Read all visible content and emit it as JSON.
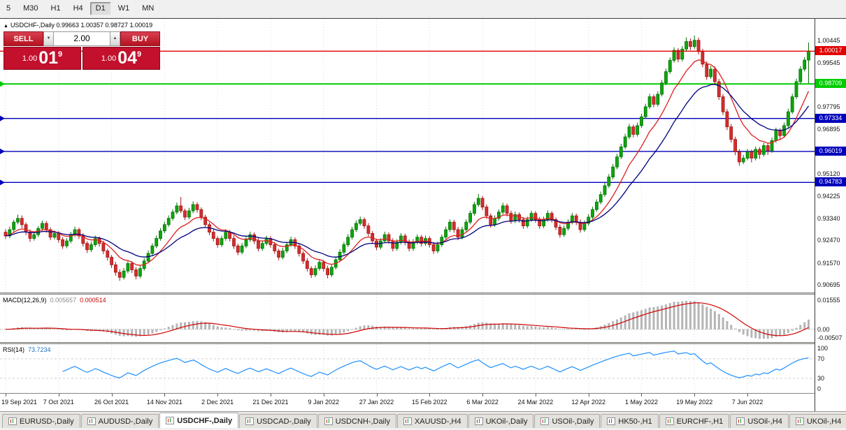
{
  "toolbar": {
    "timeframes": [
      "5",
      "M30",
      "H1",
      "H4",
      "D1",
      "W1",
      "MN"
    ],
    "active": "D1"
  },
  "chart_info": {
    "icon": "▲",
    "title": "USDCHF-,Daily",
    "ohlc_text": "0.99663 1.00357 0.98727 1.00019",
    "open": "0.99663",
    "high": "1.00357",
    "low": "0.98727",
    "close": "1.00019"
  },
  "trade_panel": {
    "sell_label": "SELL",
    "buy_label": "BUY",
    "volume": "2.00",
    "spin_down": "▼",
    "spin_up": "▲",
    "bid_small": "1.00",
    "bid_big": "01",
    "bid_sup": "9",
    "ask_small": "1.00",
    "ask_big": "04",
    "ask_sup": "9"
  },
  "price_scale": {
    "ticks": [
      {
        "t": "1.00445",
        "p": 1.00445
      },
      {
        "t": "0.99545",
        "p": 0.99545
      },
      {
        "t": "0.97795",
        "p": 0.97795
      },
      {
        "t": "0.96895",
        "p": 0.96895
      },
      {
        "t": "0.95120",
        "p": 0.9512
      },
      {
        "t": "0.94225",
        "p": 0.94225
      },
      {
        "t": "0.93340",
        "p": 0.9334
      },
      {
        "t": "0.92470",
        "p": 0.9247
      },
      {
        "t": "0.91570",
        "p": 0.9157
      },
      {
        "t": "0.90695",
        "p": 0.90695
      }
    ]
  },
  "indicators": {
    "macd": {
      "name": "MACD(12,26,9)",
      "value_main": "0.005657",
      "value_signal": "0.000514",
      "axis": [
        {
          "t": "0.01555",
          "v": 0.01555
        },
        {
          "t": "0.00",
          "v": 0
        },
        {
          "t": "-0.00507",
          "v": -0.00507
        }
      ],
      "histogram_color": "#b5b5b5",
      "signal_color": "#cf0000"
    },
    "rsi": {
      "name": "RSI(14)",
      "value": "73.7234",
      "axis": [
        {
          "t": "100",
          "v": 100
        },
        {
          "t": "70",
          "v": 70
        },
        {
          "t": "30",
          "v": 30
        },
        {
          "t": "0",
          "v": 0
        }
      ],
      "levels": [
        70,
        30
      ],
      "line_color": "#1e90ff"
    }
  },
  "tabs": {
    "items": [
      "EURUSD-,Daily",
      "AUDUSD-,Daily",
      "USDCHF-,Daily",
      "USDCAD-,Daily",
      "USDCNH-,Daily",
      "XAUUSD-,H4",
      "UKOil-,Daily",
      "USOil-,Daily",
      "HK50-,H1",
      "EURCHF-,H1",
      "USOil-,H4",
      "UKOil-,H4"
    ],
    "active_index": 2
  },
  "chart_data": {
    "type": "candlestick",
    "symbol": "USDCHF",
    "timeframe": "Daily",
    "ylim": [
      0.9045,
      1.0125
    ],
    "x_offset": 8,
    "bar_spacing": 5.83,
    "label_every": 13,
    "x_labels": [
      "19 Sep 2021",
      "7 Oct 2021",
      "26 Oct 2021",
      "14 Nov 2021",
      "2 Dec 2021",
      "21 Dec 2021",
      "9 Jan 2022",
      "27 Jan 2022",
      "15 Feb 2022",
      "6 Mar 2022",
      "24 Mar 2022",
      "12 Apr 2022",
      "1 May 2022",
      "19 May 2022",
      "7 Jun 2022"
    ],
    "up_color": "#0da60d",
    "down_color": "#d22f2f",
    "mas": [
      {
        "period": 10,
        "color": "#dd2020",
        "width": 1.3
      },
      {
        "period": 21,
        "color": "#000080",
        "width": 1.3
      }
    ],
    "macd_range": [
      -0.0068,
      0.0185
    ],
    "levels": [
      {
        "price": 1.00017,
        "label": "1.00017",
        "color": "#e00000",
        "width": 1.4,
        "marker": false,
        "over": true
      },
      {
        "price": 0.98709,
        "label": "0.98709",
        "color": "#00cc00",
        "width": 2,
        "marker": true,
        "over": false
      },
      {
        "price": 0.97334,
        "label": "0.97334",
        "color": "#0000bb",
        "width": 1.4,
        "marker": true,
        "over": false
      },
      {
        "price": 0.96019,
        "label": "0.96019",
        "color": "#0000bb",
        "width": 1.4,
        "marker": true,
        "over": false
      },
      {
        "price": 0.94783,
        "label": "0.94783",
        "color": "#0000bb",
        "width": 1.4,
        "marker": true,
        "over": false
      }
    ],
    "ohlc_current": [
      0.99663,
      1.00357,
      0.98727,
      1.00019
    ],
    "candles": [
      [
        0.928,
        0.9292,
        0.9253,
        0.9265
      ],
      [
        0.9265,
        0.9302,
        0.9256,
        0.929
      ],
      [
        0.929,
        0.9329,
        0.9281,
        0.932
      ],
      [
        0.932,
        0.935,
        0.9311,
        0.9335
      ],
      [
        0.9335,
        0.9347,
        0.9296,
        0.931
      ],
      [
        0.931,
        0.9319,
        0.9268,
        0.928
      ],
      [
        0.928,
        0.9291,
        0.9241,
        0.9255
      ],
      [
        0.9255,
        0.9282,
        0.9246,
        0.927
      ],
      [
        0.927,
        0.9304,
        0.9261,
        0.9295
      ],
      [
        0.9295,
        0.9327,
        0.9286,
        0.9315
      ],
      [
        0.9315,
        0.9324,
        0.9278,
        0.929
      ],
      [
        0.929,
        0.9299,
        0.9248,
        0.926
      ],
      [
        0.926,
        0.9287,
        0.9251,
        0.9275
      ],
      [
        0.9275,
        0.9284,
        0.9238,
        0.925
      ],
      [
        0.925,
        0.9261,
        0.9213,
        0.9225
      ],
      [
        0.9225,
        0.9256,
        0.9216,
        0.9245
      ],
      [
        0.9245,
        0.9281,
        0.9236,
        0.927
      ],
      [
        0.927,
        0.9302,
        0.9261,
        0.929
      ],
      [
        0.929,
        0.9298,
        0.9253,
        0.9265
      ],
      [
        0.9265,
        0.9276,
        0.9223,
        0.9235
      ],
      [
        0.9235,
        0.9244,
        0.9197,
        0.921
      ],
      [
        0.921,
        0.9242,
        0.9201,
        0.923
      ],
      [
        0.923,
        0.9266,
        0.9221,
        0.9255
      ],
      [
        0.9255,
        0.9263,
        0.9222,
        0.9235
      ],
      [
        0.9235,
        0.9246,
        0.9192,
        0.9205
      ],
      [
        0.9205,
        0.9214,
        0.9167,
        0.918
      ],
      [
        0.918,
        0.9189,
        0.9137,
        0.915
      ],
      [
        0.915,
        0.9161,
        0.9106,
        0.912
      ],
      [
        0.912,
        0.9131,
        0.9086,
        0.91
      ],
      [
        0.91,
        0.9137,
        0.9091,
        0.9125
      ],
      [
        0.9125,
        0.9166,
        0.9116,
        0.9155
      ],
      [
        0.9155,
        0.9164,
        0.9117,
        0.913
      ],
      [
        0.913,
        0.9141,
        0.9092,
        0.9105
      ],
      [
        0.9105,
        0.9147,
        0.9096,
        0.9135
      ],
      [
        0.9135,
        0.9176,
        0.9126,
        0.9165
      ],
      [
        0.9165,
        0.9207,
        0.9156,
        0.9195
      ],
      [
        0.9195,
        0.9236,
        0.9186,
        0.9225
      ],
      [
        0.9225,
        0.9267,
        0.9216,
        0.9255
      ],
      [
        0.9255,
        0.9296,
        0.9246,
        0.9285
      ],
      [
        0.9285,
        0.9322,
        0.9276,
        0.931
      ],
      [
        0.931,
        0.9347,
        0.9301,
        0.9335
      ],
      [
        0.9335,
        0.9371,
        0.9326,
        0.936
      ],
      [
        0.936,
        0.9398,
        0.9351,
        0.9385
      ],
      [
        0.9385,
        0.942,
        0.9356,
        0.9365
      ],
      [
        0.9365,
        0.9374,
        0.9328,
        0.934
      ],
      [
        0.934,
        0.9377,
        0.9331,
        0.9365
      ],
      [
        0.9365,
        0.9403,
        0.9356,
        0.939
      ],
      [
        0.939,
        0.9399,
        0.9358,
        0.937
      ],
      [
        0.937,
        0.9379,
        0.9328,
        0.934
      ],
      [
        0.934,
        0.9349,
        0.9298,
        0.931
      ],
      [
        0.931,
        0.9319,
        0.9268,
        0.928
      ],
      [
        0.928,
        0.9291,
        0.9243,
        0.9255
      ],
      [
        0.9255,
        0.9264,
        0.9218,
        0.923
      ],
      [
        0.923,
        0.9266,
        0.9221,
        0.9255
      ],
      [
        0.9255,
        0.9292,
        0.9246,
        0.928
      ],
      [
        0.928,
        0.9289,
        0.9243,
        0.9255
      ],
      [
        0.9255,
        0.9266,
        0.9213,
        0.9225
      ],
      [
        0.9225,
        0.9234,
        0.9188,
        0.92
      ],
      [
        0.92,
        0.9237,
        0.9191,
        0.9225
      ],
      [
        0.9225,
        0.9261,
        0.9216,
        0.925
      ],
      [
        0.925,
        0.9282,
        0.9241,
        0.927
      ],
      [
        0.927,
        0.9279,
        0.9233,
        0.9245
      ],
      [
        0.9245,
        0.9256,
        0.9203,
        0.9215
      ],
      [
        0.9215,
        0.9247,
        0.9206,
        0.9235
      ],
      [
        0.9235,
        0.9266,
        0.9226,
        0.9255
      ],
      [
        0.9255,
        0.9264,
        0.9218,
        0.923
      ],
      [
        0.923,
        0.9241,
        0.9193,
        0.9205
      ],
      [
        0.9205,
        0.9214,
        0.9168,
        0.918
      ],
      [
        0.918,
        0.9217,
        0.9171,
        0.9205
      ],
      [
        0.9205,
        0.9241,
        0.9196,
        0.923
      ],
      [
        0.923,
        0.9262,
        0.9221,
        0.925
      ],
      [
        0.925,
        0.9259,
        0.9213,
        0.9225
      ],
      [
        0.9225,
        0.9236,
        0.9183,
        0.9195
      ],
      [
        0.9195,
        0.9204,
        0.9153,
        0.9165
      ],
      [
        0.9165,
        0.9176,
        0.9123,
        0.9135
      ],
      [
        0.9135,
        0.9144,
        0.9098,
        0.911
      ],
      [
        0.911,
        0.9147,
        0.9101,
        0.9135
      ],
      [
        0.9135,
        0.9171,
        0.9126,
        0.916
      ],
      [
        0.916,
        0.9169,
        0.9123,
        0.9135
      ],
      [
        0.9135,
        0.9146,
        0.9096,
        0.911
      ],
      [
        0.911,
        0.9152,
        0.9101,
        0.914
      ],
      [
        0.914,
        0.9181,
        0.9131,
        0.917
      ],
      [
        0.917,
        0.9212,
        0.9161,
        0.92
      ],
      [
        0.92,
        0.9241,
        0.9191,
        0.923
      ],
      [
        0.923,
        0.9272,
        0.9221,
        0.926
      ],
      [
        0.926,
        0.9301,
        0.9251,
        0.929
      ],
      [
        0.929,
        0.9326,
        0.9281,
        0.9315
      ],
      [
        0.9315,
        0.9342,
        0.9306,
        0.933
      ],
      [
        0.933,
        0.9339,
        0.9293,
        0.9305
      ],
      [
        0.9305,
        0.9316,
        0.9263,
        0.9275
      ],
      [
        0.9275,
        0.9284,
        0.9233,
        0.9245
      ],
      [
        0.9245,
        0.9254,
        0.9208,
        0.922
      ],
      [
        0.922,
        0.9256,
        0.9211,
        0.9245
      ],
      [
        0.9245,
        0.9282,
        0.9236,
        0.927
      ],
      [
        0.927,
        0.9279,
        0.9233,
        0.9245
      ],
      [
        0.9245,
        0.9256,
        0.9203,
        0.9215
      ],
      [
        0.9215,
        0.9252,
        0.9206,
        0.924
      ],
      [
        0.924,
        0.9276,
        0.9231,
        0.9265
      ],
      [
        0.9265,
        0.9274,
        0.9228,
        0.924
      ],
      [
        0.924,
        0.9251,
        0.9203,
        0.9215
      ],
      [
        0.9215,
        0.9252,
        0.9206,
        0.924
      ],
      [
        0.924,
        0.9271,
        0.9231,
        0.926
      ],
      [
        0.926,
        0.9269,
        0.9223,
        0.9235
      ],
      [
        0.9235,
        0.9266,
        0.9226,
        0.9255
      ],
      [
        0.9255,
        0.9264,
        0.9218,
        0.923
      ],
      [
        0.923,
        0.9241,
        0.9193,
        0.9205
      ],
      [
        0.9205,
        0.9242,
        0.9196,
        0.923
      ],
      [
        0.923,
        0.9271,
        0.9221,
        0.926
      ],
      [
        0.926,
        0.9302,
        0.9251,
        0.929
      ],
      [
        0.929,
        0.9331,
        0.9281,
        0.932
      ],
      [
        0.932,
        0.9329,
        0.9278,
        0.929
      ],
      [
        0.929,
        0.9301,
        0.9248,
        0.926
      ],
      [
        0.926,
        0.9302,
        0.9251,
        0.929
      ],
      [
        0.929,
        0.9331,
        0.9281,
        0.932
      ],
      [
        0.932,
        0.9366,
        0.9311,
        0.9355
      ],
      [
        0.9355,
        0.9401,
        0.9346,
        0.939
      ],
      [
        0.939,
        0.9432,
        0.9381,
        0.9415
      ],
      [
        0.9415,
        0.9424,
        0.9368,
        0.938
      ],
      [
        0.938,
        0.9391,
        0.9333,
        0.9345
      ],
      [
        0.9345,
        0.9354,
        0.9298,
        0.931
      ],
      [
        0.931,
        0.9347,
        0.9301,
        0.9335
      ],
      [
        0.9335,
        0.9371,
        0.9326,
        0.936
      ],
      [
        0.936,
        0.9397,
        0.9351,
        0.9385
      ],
      [
        0.9385,
        0.9394,
        0.9343,
        0.9355
      ],
      [
        0.9355,
        0.9366,
        0.9313,
        0.9325
      ],
      [
        0.9325,
        0.9362,
        0.9316,
        0.935
      ],
      [
        0.935,
        0.9359,
        0.9318,
        0.933
      ],
      [
        0.933,
        0.9341,
        0.9293,
        0.9305
      ],
      [
        0.9305,
        0.9342,
        0.9296,
        0.933
      ],
      [
        0.933,
        0.9366,
        0.9321,
        0.9355
      ],
      [
        0.9355,
        0.9364,
        0.9318,
        0.933
      ],
      [
        0.933,
        0.9341,
        0.9293,
        0.9305
      ],
      [
        0.9305,
        0.9342,
        0.9296,
        0.933
      ],
      [
        0.933,
        0.9367,
        0.9321,
        0.9355
      ],
      [
        0.9355,
        0.9364,
        0.9318,
        0.933
      ],
      [
        0.933,
        0.9339,
        0.9288,
        0.93
      ],
      [
        0.93,
        0.9311,
        0.9258,
        0.927
      ],
      [
        0.927,
        0.9307,
        0.9261,
        0.9295
      ],
      [
        0.9295,
        0.9331,
        0.9286,
        0.932
      ],
      [
        0.932,
        0.9357,
        0.9311,
        0.9345
      ],
      [
        0.9345,
        0.9354,
        0.9308,
        0.932
      ],
      [
        0.932,
        0.9331,
        0.9278,
        0.929
      ],
      [
        0.929,
        0.9327,
        0.9281,
        0.9315
      ],
      [
        0.9315,
        0.9352,
        0.9306,
        0.934
      ],
      [
        0.934,
        0.9381,
        0.9331,
        0.937
      ],
      [
        0.937,
        0.9411,
        0.9361,
        0.94
      ],
      [
        0.94,
        0.9442,
        0.9391,
        0.943
      ],
      [
        0.943,
        0.9477,
        0.9421,
        0.9465
      ],
      [
        0.9465,
        0.9512,
        0.9456,
        0.95
      ],
      [
        0.95,
        0.9552,
        0.9491,
        0.954
      ],
      [
        0.954,
        0.9592,
        0.9531,
        0.958
      ],
      [
        0.958,
        0.9632,
        0.9571,
        0.962
      ],
      [
        0.962,
        0.9672,
        0.9611,
        0.966
      ],
      [
        0.966,
        0.9712,
        0.9651,
        0.97
      ],
      [
        0.97,
        0.9709,
        0.9658,
        0.967
      ],
      [
        0.967,
        0.9717,
        0.9661,
        0.9705
      ],
      [
        0.9705,
        0.9752,
        0.9696,
        0.974
      ],
      [
        0.974,
        0.9792,
        0.9731,
        0.978
      ],
      [
        0.978,
        0.9832,
        0.9771,
        0.982
      ],
      [
        0.982,
        0.9829,
        0.9778,
        0.979
      ],
      [
        0.979,
        0.9842,
        0.9781,
        0.983
      ],
      [
        0.983,
        0.9887,
        0.9821,
        0.9875
      ],
      [
        0.9875,
        0.9932,
        0.9866,
        0.992
      ],
      [
        0.992,
        0.9977,
        0.9911,
        0.9965
      ],
      [
        0.9965,
        1.0017,
        0.9956,
        1.0005
      ],
      [
        1.0005,
        1.0014,
        0.9958,
        0.997
      ],
      [
        0.997,
        1.0022,
        0.9961,
        1.001
      ],
      [
        1.001,
        1.0057,
        1.0001,
        1.004
      ],
      [
        1.004,
        1.0052,
        1.0006,
        1.002
      ],
      [
        1.002,
        1.0064,
        1.0011,
        1.0045
      ],
      [
        1.0045,
        1.0056,
        0.9988,
        1.0
      ],
      [
        1.0,
        1.0011,
        0.9937,
        0.995
      ],
      [
        0.995,
        0.9961,
        0.9887,
        0.99
      ],
      [
        0.99,
        0.9943,
        0.9891,
        0.993
      ],
      [
        0.993,
        0.9941,
        0.9867,
        0.988
      ],
      [
        0.988,
        0.9891,
        0.9807,
        0.982
      ],
      [
        0.982,
        0.9831,
        0.9747,
        0.976
      ],
      [
        0.976,
        0.9771,
        0.9687,
        0.97
      ],
      [
        0.97,
        0.9711,
        0.9637,
        0.965
      ],
      [
        0.965,
        0.9661,
        0.9587,
        0.96
      ],
      [
        0.96,
        0.9611,
        0.9545,
        0.956
      ],
      [
        0.956,
        0.9588,
        0.9551,
        0.9575
      ],
      [
        0.9575,
        0.9612,
        0.9566,
        0.96
      ],
      [
        0.96,
        0.9609,
        0.9558,
        0.9575
      ],
      [
        0.9575,
        0.9622,
        0.9566,
        0.961
      ],
      [
        0.961,
        0.9619,
        0.9572,
        0.959
      ],
      [
        0.959,
        0.9637,
        0.9581,
        0.9625
      ],
      [
        0.9625,
        0.9634,
        0.9588,
        0.9605
      ],
      [
        0.9605,
        0.9657,
        0.9596,
        0.9645
      ],
      [
        0.9645,
        0.9697,
        0.9636,
        0.9685
      ],
      [
        0.9685,
        0.9694,
        0.9648,
        0.9665
      ],
      [
        0.9665,
        0.9717,
        0.9656,
        0.9705
      ],
      [
        0.9705,
        0.9772,
        0.9696,
        0.976
      ],
      [
        0.976,
        0.9832,
        0.9751,
        0.982
      ],
      [
        0.982,
        0.9892,
        0.9811,
        0.988
      ],
      [
        0.988,
        0.9942,
        0.9871,
        0.993
      ],
      [
        0.993,
        0.9978,
        0.9921,
        0.9966
      ],
      [
        0.9966,
        1.0036,
        0.9873,
        1.0002
      ]
    ]
  }
}
